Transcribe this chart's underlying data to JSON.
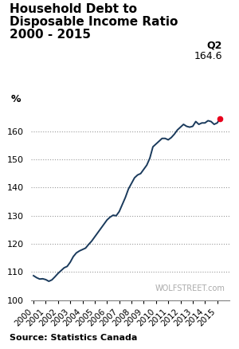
{
  "title_line1": "Household Debt to",
  "title_line2": "Disposable Income Ratio",
  "title_line3": "2000 - 2015",
  "ylabel": "%",
  "annotation_label": "Q2",
  "annotation_value": "164.6",
  "source_text": "Source: Statistics Canada",
  "watermark": "WOLFSTREET.com",
  "ylim": [
    100,
    167
  ],
  "yticks": [
    100,
    110,
    120,
    130,
    140,
    150,
    160
  ],
  "line_color": "#1a3a5c",
  "highlight_color": "#e8001c",
  "years": [
    2000,
    2001,
    2002,
    2003,
    2004,
    2005,
    2006,
    2007,
    2008,
    2009,
    2010,
    2011,
    2012,
    2013,
    2014,
    2015
  ],
  "data": {
    "2000Q1": 108.7,
    "2000Q2": 108.0,
    "2000Q3": 107.5,
    "2000Q4": 107.6,
    "2001Q1": 107.3,
    "2001Q2": 106.7,
    "2001Q3": 107.2,
    "2001Q4": 108.3,
    "2002Q1": 109.5,
    "2002Q2": 110.5,
    "2002Q3": 111.5,
    "2002Q4": 112.0,
    "2003Q1": 113.5,
    "2003Q2": 115.5,
    "2003Q3": 116.8,
    "2003Q4": 117.5,
    "2004Q1": 118.0,
    "2004Q2": 118.5,
    "2004Q3": 119.8,
    "2004Q4": 121.0,
    "2005Q1": 122.5,
    "2005Q2": 124.0,
    "2005Q3": 125.5,
    "2005Q4": 127.0,
    "2006Q1": 128.5,
    "2006Q2": 129.5,
    "2006Q3": 130.2,
    "2006Q4": 130.0,
    "2007Q1": 131.5,
    "2007Q2": 134.0,
    "2007Q3": 136.5,
    "2007Q4": 139.5,
    "2008Q1": 141.5,
    "2008Q2": 143.5,
    "2008Q3": 144.5,
    "2008Q4": 145.0,
    "2009Q1": 146.5,
    "2009Q2": 148.0,
    "2009Q3": 150.5,
    "2009Q4": 154.5,
    "2010Q1": 155.5,
    "2010Q2": 156.5,
    "2010Q3": 157.5,
    "2010Q4": 157.5,
    "2011Q1": 157.0,
    "2011Q2": 157.8,
    "2011Q3": 159.0,
    "2011Q4": 160.5,
    "2012Q1": 161.5,
    "2012Q2": 162.5,
    "2012Q3": 161.8,
    "2012Q4": 161.5,
    "2013Q1": 161.8,
    "2013Q2": 163.5,
    "2013Q3": 162.5,
    "2013Q4": 163.0,
    "2014Q1": 163.0,
    "2014Q2": 163.8,
    "2014Q3": 163.5,
    "2014Q4": 162.5,
    "2015Q1": 163.0,
    "2015Q2": 164.6
  }
}
